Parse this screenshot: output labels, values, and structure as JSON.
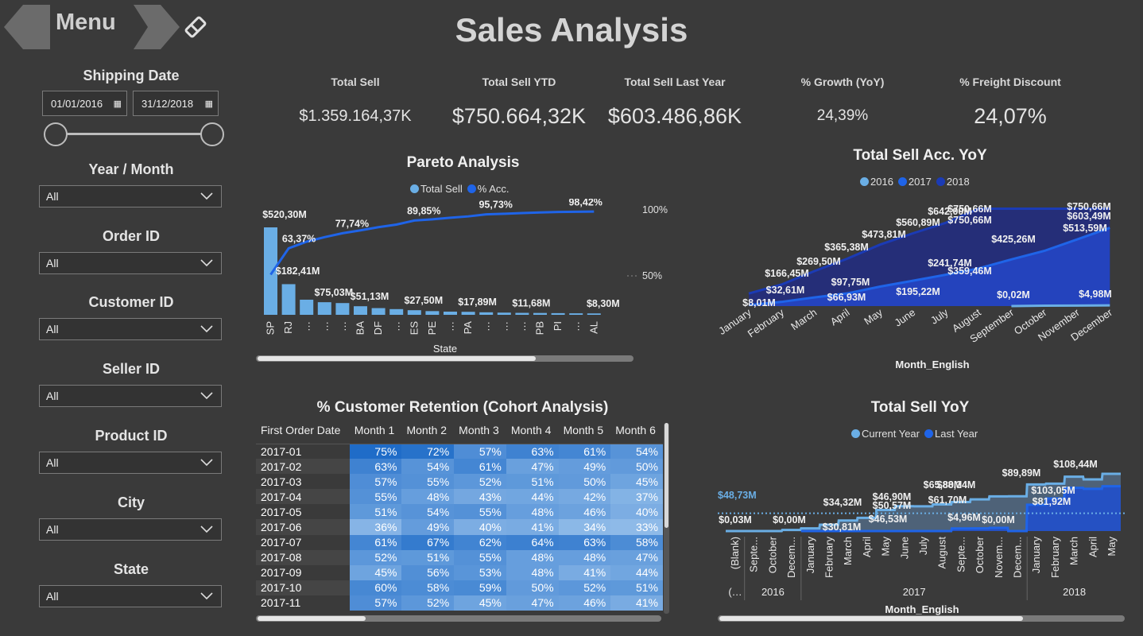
{
  "nav": {
    "menu_label": "Menu",
    "title": "Sales Analysis"
  },
  "filters": {
    "shipping_date": {
      "label": "Shipping Date",
      "start": "01/01/2016",
      "end": "31/12/2018"
    },
    "dropdowns": [
      {
        "label": "Year / Month",
        "value": "All"
      },
      {
        "label": "Order ID",
        "value": "All"
      },
      {
        "label": "Customer ID",
        "value": "All"
      },
      {
        "label": "Seller ID",
        "value": "All"
      },
      {
        "label": "Product ID",
        "value": "All"
      },
      {
        "label": "City",
        "value": "All"
      },
      {
        "label": "State",
        "value": "All"
      }
    ]
  },
  "kpis": [
    {
      "label": "Total Sell",
      "value": "$1.359.164,37K"
    },
    {
      "label": "Total Sell YTD",
      "value": "$750.664,32K"
    },
    {
      "label": "Total Sell Last Year",
      "value": "$603.486,86K"
    },
    {
      "label": "% Growth (YoY)",
      "value": "24,39%"
    },
    {
      "label": "% Freight Discount",
      "value": "24,07%"
    }
  ],
  "colors": {
    "background": "#3a3a3a",
    "bar_light": "#6aaee5",
    "line_blue": "#1f64e8",
    "dark_blue": "#1b3bb5"
  },
  "chart_data": [
    {
      "type": "bar",
      "title": "Pareto Analysis",
      "xlabel": "State",
      "legend": [
        "Total Sell",
        "% Acc."
      ],
      "categories": [
        "SP",
        "RJ",
        "…",
        "…",
        "…",
        "BA",
        "DF",
        "…",
        "ES",
        "PE",
        "…",
        "PA",
        "…",
        "…",
        "…",
        "PB",
        "PI",
        "…",
        "AL"
      ],
      "series": [
        {
          "name": "Total Sell",
          "values": [
            520.3,
            182.41,
            90,
            75.03,
            70,
            51.13,
            40,
            34,
            27.5,
            22,
            19,
            17.89,
            15,
            13,
            11.68,
            11,
            10,
            9,
            8.3
          ]
        },
        {
          "name": "% Acc.",
          "values": [
            38.3,
            63.37,
            69.7,
            74.0,
            77.74,
            80.5,
            83.5,
            86.0,
            89.85,
            91.0,
            92.5,
            93.8,
            95.73,
            96.3,
            97.0,
            97.5,
            98.0,
            98.2,
            98.42
          ]
        }
      ],
      "data_labels": [
        {
          "text": "$520,30M",
          "x": 0
        },
        {
          "text": "$182,41M",
          "x": 1
        },
        {
          "text": "$75,03M",
          "x": 3
        },
        {
          "text": "$51,13M",
          "x": 5
        },
        {
          "text": "$27,50M",
          "x": 8
        },
        {
          "text": "$17,89M",
          "x": 11
        },
        {
          "text": "$11,68M",
          "x": 14
        },
        {
          "text": "$8,30M",
          "x": 18
        }
      ],
      "pct_labels": [
        {
          "text": "63,37%",
          "x": 1
        },
        {
          "text": "77,74%",
          "x": 4
        },
        {
          "text": "89,85%",
          "x": 8
        },
        {
          "text": "95,73%",
          "x": 12
        },
        {
          "text": "98,42%",
          "x": 17
        }
      ],
      "right_ticks": [
        "100%",
        "50%"
      ]
    },
    {
      "type": "area",
      "title": "Total Sell Acc. YoY",
      "xlabel": "Month_English",
      "legend": [
        "2016",
        "2017",
        "2018"
      ],
      "categories": [
        "January",
        "February",
        "March",
        "April",
        "May",
        "June",
        "July",
        "August",
        "September",
        "October",
        "November",
        "December"
      ],
      "series": [
        {
          "name": "2018",
          "values": [
            97,
            166.45,
            269.5,
            365.38,
            473.81,
            560.89,
            642.0,
            750.66,
            750.66,
            750.66,
            750.66,
            750.66
          ]
        },
        {
          "name": "2017",
          "values": [
            8.01,
            32.61,
            66.93,
            97.75,
            150,
            195.22,
            241.74,
            290,
            359.46,
            425.26,
            513.59,
            603.49
          ]
        },
        {
          "name": "2016",
          "values": [
            null,
            null,
            null,
            null,
            null,
            null,
            null,
            null,
            0.02,
            3,
            4,
            4.98
          ]
        }
      ],
      "labels": [
        {
          "text": "$8,01M"
        },
        {
          "text": "$32,61M"
        },
        {
          "text": "$166,45M"
        },
        {
          "text": "$269,50M"
        },
        {
          "text": "$365,38M"
        },
        {
          "text": "$97,75M"
        },
        {
          "text": "$66,93M"
        },
        {
          "text": "$473,81M"
        },
        {
          "text": "$195,22M"
        },
        {
          "text": "$560,89M"
        },
        {
          "text": "$241,74M"
        },
        {
          "text": "$642,00M"
        },
        {
          "text": "$750,66M"
        },
        {
          "text": "$750,66M"
        },
        {
          "text": "$359,46M"
        },
        {
          "text": "$0,02M"
        },
        {
          "text": "$425,26M"
        },
        {
          "text": "$750,66M"
        },
        {
          "text": "$603,49M"
        },
        {
          "text": "$513,59M"
        },
        {
          "text": "$4,98M"
        }
      ]
    },
    {
      "type": "table",
      "title": "% Customer Retention (Cohort Analysis)",
      "columns": [
        "First Order Date",
        "Month 1",
        "Month 2",
        "Month 3",
        "Month 4",
        "Month 5",
        "Month 6"
      ],
      "rows": [
        {
          "date": "2017-01",
          "values": [
            75,
            72,
            57,
            63,
            61,
            54
          ]
        },
        {
          "date": "2017-02",
          "values": [
            63,
            54,
            61,
            47,
            49,
            50
          ]
        },
        {
          "date": "2017-03",
          "values": [
            57,
            55,
            52,
            51,
            50,
            45
          ]
        },
        {
          "date": "2017-04",
          "values": [
            55,
            48,
            43,
            44,
            42,
            37
          ]
        },
        {
          "date": "2017-05",
          "values": [
            51,
            54,
            55,
            48,
            46,
            40
          ]
        },
        {
          "date": "2017-06",
          "values": [
            36,
            49,
            40,
            41,
            34,
            33
          ]
        },
        {
          "date": "2017-07",
          "values": [
            61,
            67,
            62,
            64,
            63,
            58
          ]
        },
        {
          "date": "2017-08",
          "values": [
            52,
            51,
            55,
            48,
            48,
            47
          ]
        },
        {
          "date": "2017-09",
          "values": [
            45,
            56,
            53,
            48,
            41,
            44
          ]
        },
        {
          "date": "2017-10",
          "values": [
            60,
            58,
            59,
            50,
            52,
            51
          ]
        },
        {
          "date": "2017-11",
          "values": [
            57,
            52,
            45,
            47,
            46,
            41
          ]
        }
      ]
    },
    {
      "type": "line",
      "title": "Total Sell YoY",
      "xlabel": "Month_English",
      "legend": [
        "Current Year",
        "Last Year"
      ],
      "categories": [
        "(Blank)",
        "Septe...",
        "October",
        "Decem...",
        "January",
        "February",
        "March",
        "April",
        "May",
        "June",
        "July",
        "August",
        "Septe...",
        "October",
        "Novem...",
        "Decem...",
        "January",
        "February",
        "March",
        "April",
        "May"
      ],
      "years": [
        {
          "label": "(…",
          "from": 0,
          "to": 0
        },
        {
          "label": "2016",
          "from": 1,
          "to": 3
        },
        {
          "label": "2017",
          "from": 4,
          "to": 15
        },
        {
          "label": "2018",
          "from": 16,
          "to": 20
        }
      ],
      "series": [
        {
          "name": "Current Year",
          "values": [
            0.03,
            0,
            0,
            2,
            5,
            12,
            20,
            25,
            40,
            47,
            46.9,
            50.57,
            55,
            60,
            65.8,
            66,
            88.34,
            89.89,
            103.05,
            98,
            108.44
          ]
        },
        {
          "name": "Last Year",
          "values": [
            null,
            null,
            null,
            null,
            0,
            0,
            0,
            0,
            0,
            0,
            0,
            0,
            4.96,
            5,
            6,
            0,
            50,
            61.7,
            81.92,
            80,
            85
          ]
        }
      ],
      "reference_line": {
        "text": "$48,73M",
        "value": 48.73
      },
      "labels": [
        {
          "text": "$0,03M"
        },
        {
          "text": "$0,00M"
        },
        {
          "text": "$34,32M"
        },
        {
          "text": "$30,81M"
        },
        {
          "text": "$46,90M"
        },
        {
          "text": "$50,57M"
        },
        {
          "text": "$46,53M"
        },
        {
          "text": "$65,80M"
        },
        {
          "text": "$88,34M"
        },
        {
          "text": "$61,70M"
        },
        {
          "text": "$4,96M"
        },
        {
          "text": "$0,00M"
        },
        {
          "text": "$89,89M"
        },
        {
          "text": "$103,05M"
        },
        {
          "text": "$81,92M"
        },
        {
          "text": "$108,44M"
        }
      ]
    }
  ]
}
